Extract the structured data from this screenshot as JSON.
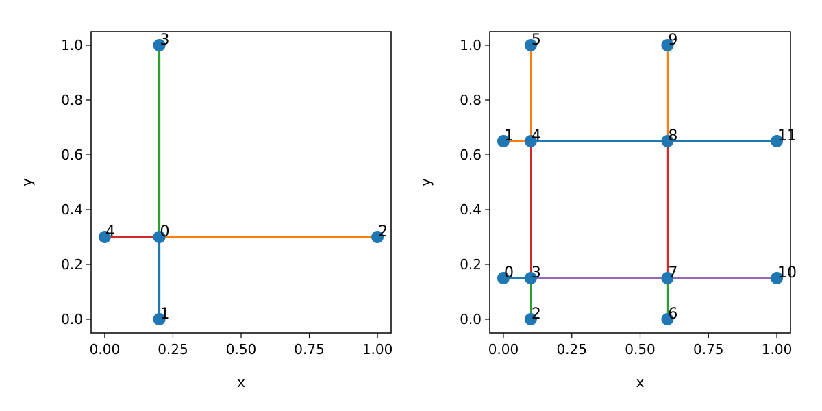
{
  "colors": {
    "node": "#1f77b4",
    "palette": [
      "#1f77b4",
      "#ff7f0e",
      "#2ca02c",
      "#d62728",
      "#9467bd"
    ]
  },
  "chart_data": [
    {
      "type": "scatter",
      "title": "",
      "xlabel": "x",
      "ylabel": "y",
      "xlim": [
        -0.05,
        1.05
      ],
      "ylim": [
        -0.05,
        1.05
      ],
      "xticks": [
        0.0,
        0.25,
        0.5,
        0.75,
        1.0
      ],
      "xtick_labels": [
        "0.00",
        "0.25",
        "0.50",
        "0.75",
        "1.00"
      ],
      "yticks": [
        0.0,
        0.2,
        0.4,
        0.6,
        0.8,
        1.0
      ],
      "ytick_labels": [
        "0.0",
        "0.2",
        "0.4",
        "0.6",
        "0.8",
        "1.0"
      ],
      "grid": false,
      "nodes": [
        {
          "label": "0",
          "x": 0.2,
          "y": 0.3
        },
        {
          "label": "1",
          "x": 0.2,
          "y": 0.0
        },
        {
          "label": "2",
          "x": 1.0,
          "y": 0.3
        },
        {
          "label": "3",
          "x": 0.2,
          "y": 1.0
        },
        {
          "label": "4",
          "x": 0.0,
          "y": 0.3
        }
      ],
      "edges": [
        {
          "from": 0,
          "to": 1,
          "color": "#1f77b4"
        },
        {
          "from": 0,
          "to": 2,
          "color": "#ff7f0e"
        },
        {
          "from": 0,
          "to": 3,
          "color": "#2ca02c"
        },
        {
          "from": 0,
          "to": 4,
          "color": "#d62728"
        }
      ]
    },
    {
      "type": "scatter",
      "title": "",
      "xlabel": "x",
      "ylabel": "y",
      "xlim": [
        -0.05,
        1.05
      ],
      "ylim": [
        -0.05,
        1.05
      ],
      "xticks": [
        0.0,
        0.25,
        0.5,
        0.75,
        1.0
      ],
      "xtick_labels": [
        "0.00",
        "0.25",
        "0.50",
        "0.75",
        "1.00"
      ],
      "yticks": [
        0.0,
        0.2,
        0.4,
        0.6,
        0.8,
        1.0
      ],
      "ytick_labels": [
        "0.0",
        "0.2",
        "0.4",
        "0.6",
        "0.8",
        "1.0"
      ],
      "grid": false,
      "nodes": [
        {
          "label": "0",
          "x": 0.0,
          "y": 0.15
        },
        {
          "label": "1",
          "x": 0.0,
          "y": 0.65
        },
        {
          "label": "2",
          "x": 0.1,
          "y": 0.0
        },
        {
          "label": "3",
          "x": 0.1,
          "y": 0.15
        },
        {
          "label": "4",
          "x": 0.1,
          "y": 0.65
        },
        {
          "label": "5",
          "x": 0.1,
          "y": 1.0
        },
        {
          "label": "6",
          "x": 0.6,
          "y": 0.0
        },
        {
          "label": "7",
          "x": 0.6,
          "y": 0.15
        },
        {
          "label": "8",
          "x": 0.6,
          "y": 0.65
        },
        {
          "label": "9",
          "x": 0.6,
          "y": 1.0
        },
        {
          "label": "10",
          "x": 1.0,
          "y": 0.15
        },
        {
          "label": "11",
          "x": 1.0,
          "y": 0.65
        }
      ],
      "edges": [
        {
          "from": 0,
          "to": 3,
          "color": "#1f77b4"
        },
        {
          "from": 1,
          "to": 4,
          "color": "#ff7f0e"
        },
        {
          "from": 2,
          "to": 3,
          "color": "#2ca02c"
        },
        {
          "from": 3,
          "to": 4,
          "color": "#d62728"
        },
        {
          "from": 3,
          "to": 7,
          "color": "#9467bd"
        },
        {
          "from": 4,
          "to": 5,
          "color": "#ff7f0e"
        },
        {
          "from": 4,
          "to": 8,
          "color": "#1f77b4"
        },
        {
          "from": 6,
          "to": 7,
          "color": "#2ca02c"
        },
        {
          "from": 7,
          "to": 8,
          "color": "#d62728"
        },
        {
          "from": 7,
          "to": 10,
          "color": "#9467bd"
        },
        {
          "from": 8,
          "to": 9,
          "color": "#ff7f0e"
        },
        {
          "from": 8,
          "to": 11,
          "color": "#1f77b4"
        }
      ]
    }
  ]
}
